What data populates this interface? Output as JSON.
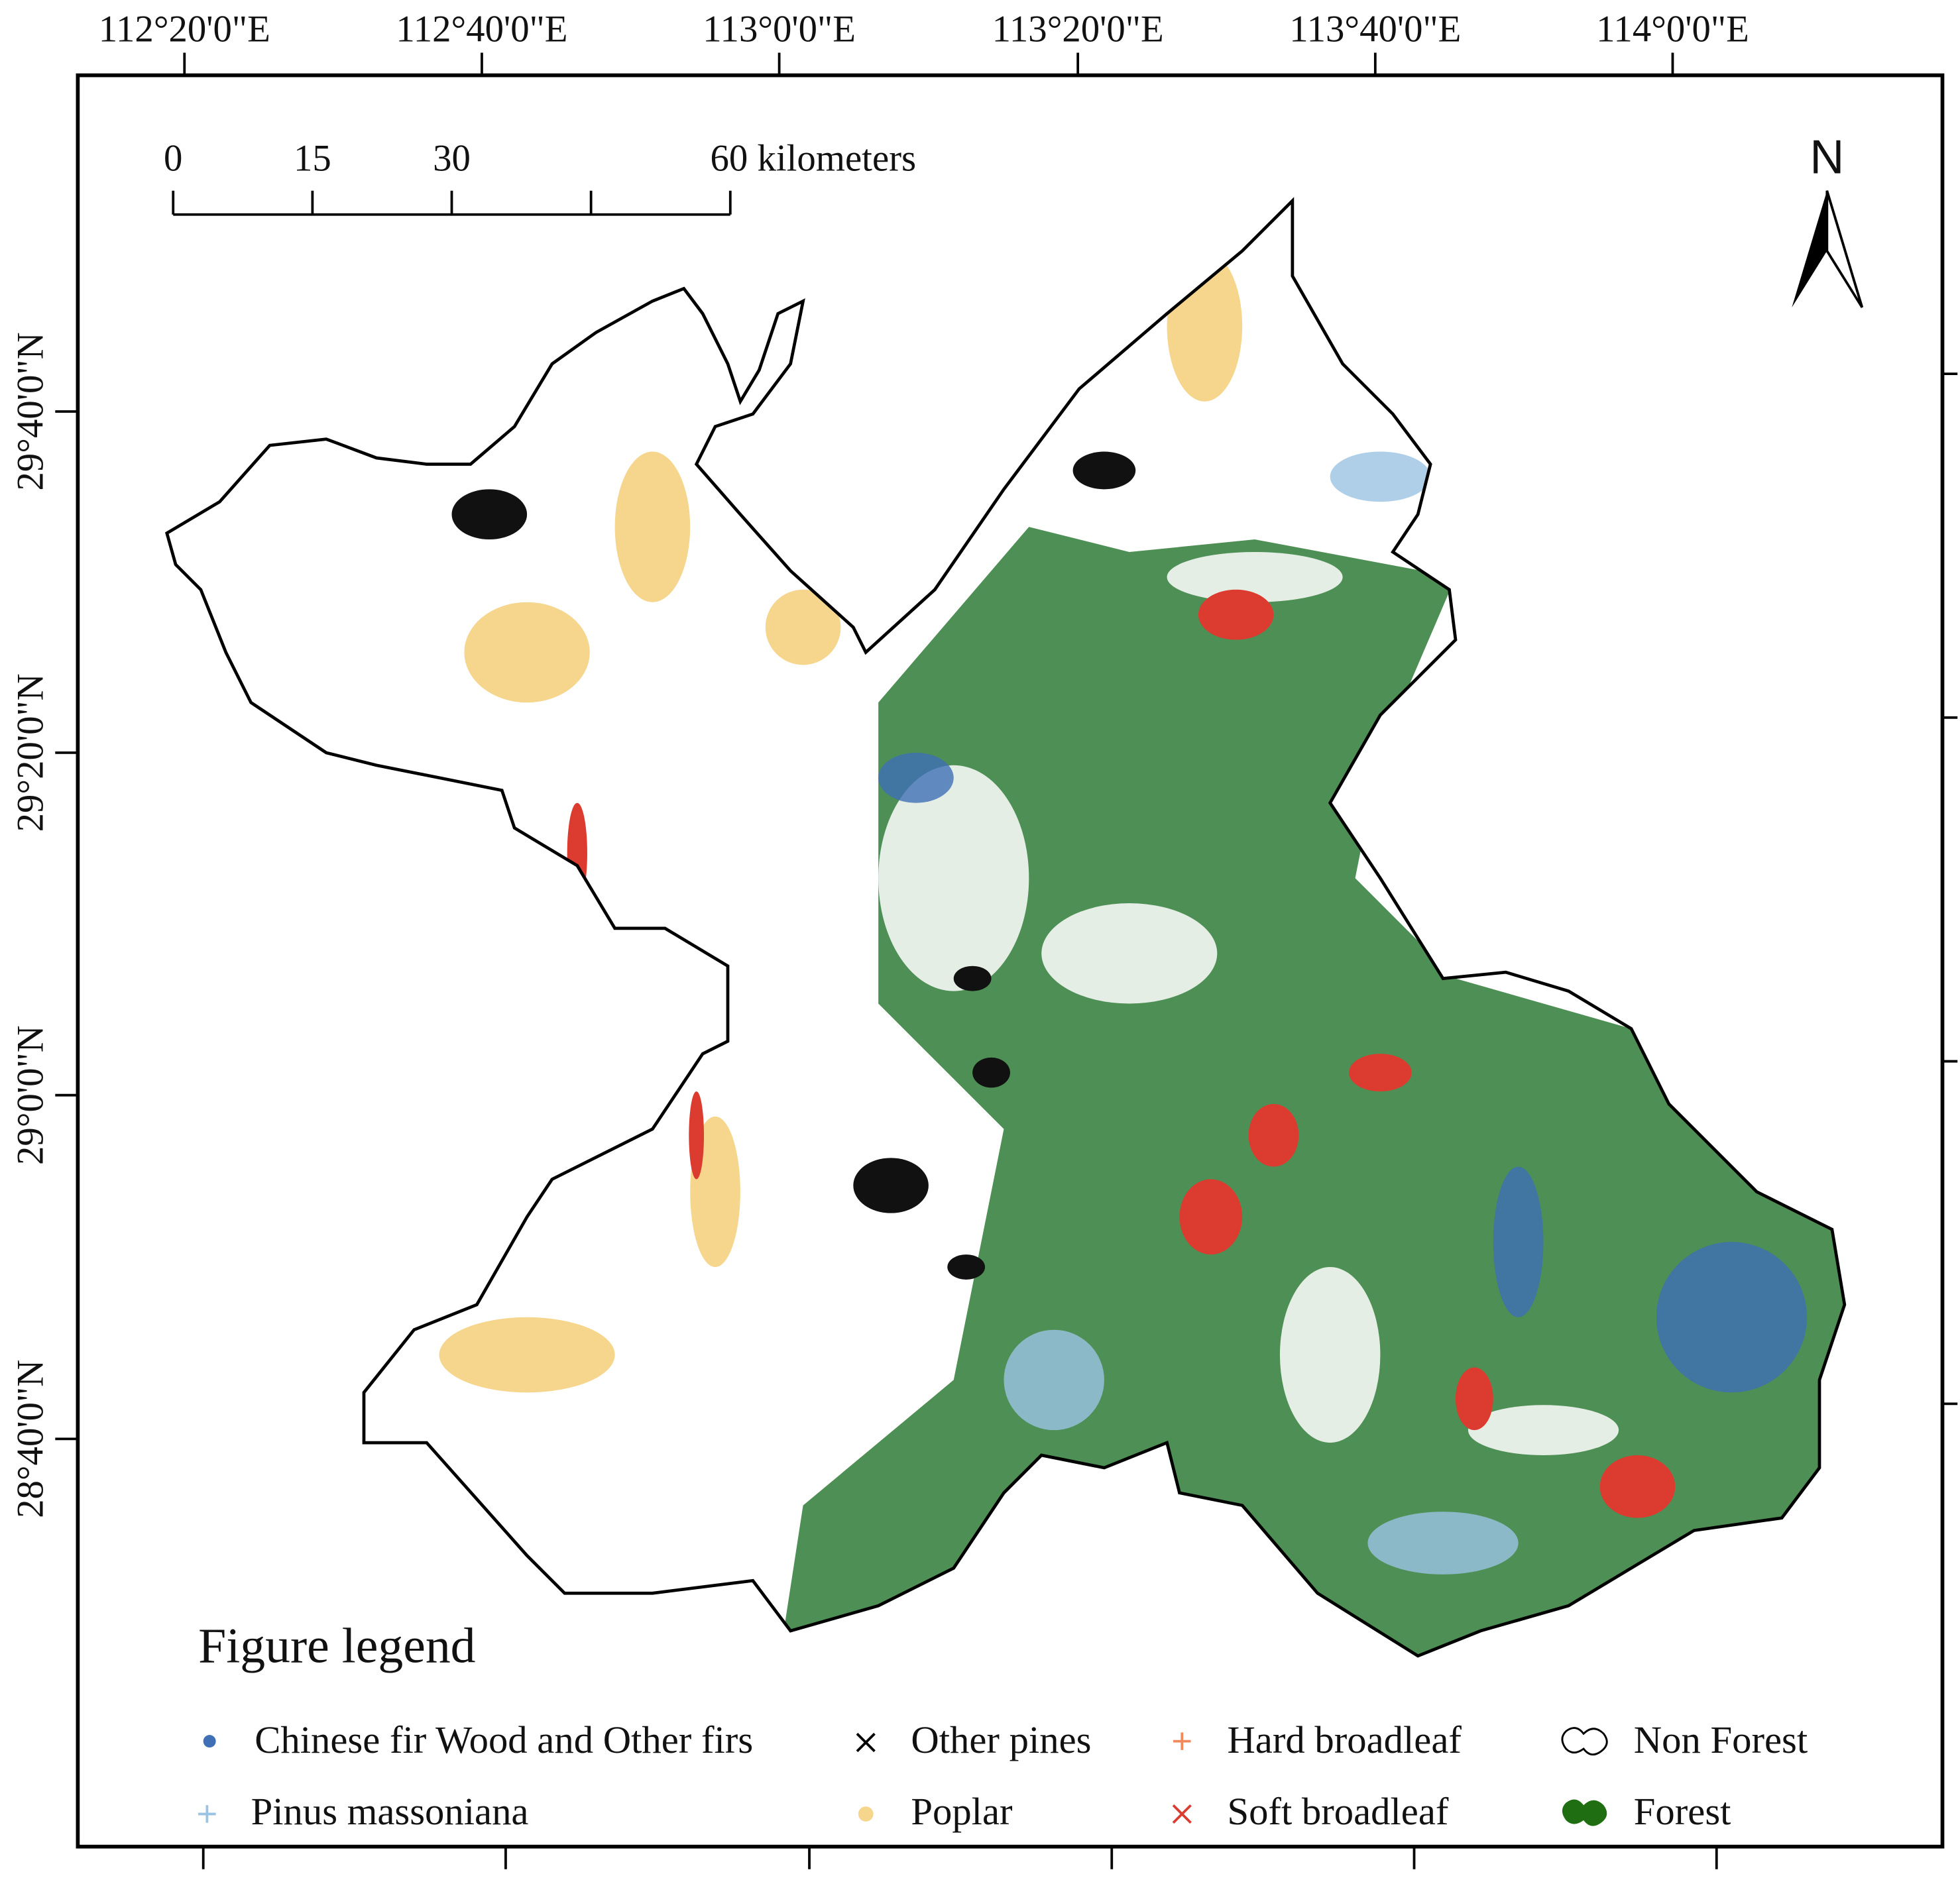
{
  "axes": {
    "top_labels": [
      "112°20'0\"E",
      "112°40'0\"E",
      "113°0'0\"E",
      "113°20'0\"E",
      "113°40'0\"E",
      "114°0'0\"E"
    ],
    "left_labels": [
      "29°40'0\"N",
      "29°20'0\"N",
      "29°0'0\"N",
      "28°40'0\"N"
    ]
  },
  "scale_bar": {
    "labels": [
      "0",
      "15",
      "30",
      "60 kilometers"
    ]
  },
  "north": "N",
  "legend": {
    "title": "Figure legend",
    "items": [
      "Chinese fir Wood and Other firs",
      "Other pines",
      "Hard broadleaf",
      "Non Forest",
      "Pinus massoniana",
      "Poplar",
      "Soft broadleaf",
      "Forest"
    ]
  }
}
